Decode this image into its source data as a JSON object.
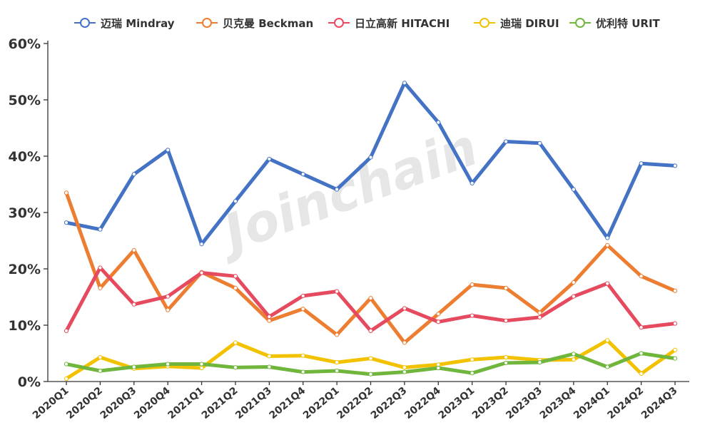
{
  "chart_data": {
    "type": "line",
    "watermark": "Joinchain",
    "ylim": [
      0,
      60
    ],
    "yticks": [
      0,
      10,
      20,
      30,
      40,
      50,
      60
    ],
    "ytick_labels": [
      "0%",
      "10%",
      "20%",
      "30%",
      "40%",
      "50%",
      "60%"
    ],
    "categories": [
      "2020Q1",
      "2020Q2",
      "2020Q3",
      "2020Q4",
      "2021Q1",
      "2021Q2",
      "2021Q3",
      "2021Q4",
      "2022Q1",
      "2022Q2",
      "2022Q3",
      "2022Q4",
      "2023Q1",
      "2023Q2",
      "2023Q3",
      "2023Q4",
      "2024Q1",
      "2024Q2",
      "2024Q3"
    ],
    "series": [
      {
        "name": "迈瑞 Mindray",
        "color": "#4472C4",
        "values": [
          28.2,
          27.0,
          36.8,
          41.1,
          24.4,
          32.0,
          39.5,
          36.8,
          34.1,
          39.8,
          53.0,
          46.0,
          35.2,
          42.6,
          42.3,
          34.1,
          25.5,
          38.7,
          38.3
        ]
      },
      {
        "name": "贝克曼 Beckman",
        "color": "#ED7D31",
        "values": [
          33.5,
          16.6,
          23.3,
          12.7,
          19.4,
          16.6,
          10.8,
          12.9,
          8.3,
          14.8,
          6.9,
          12.0,
          17.2,
          16.6,
          12.2,
          17.6,
          24.2,
          18.7,
          16.1
        ]
      },
      {
        "name": "日立高新 HITACHI",
        "color": "#E64A5E",
        "values": [
          9.0,
          20.2,
          13.7,
          15.1,
          19.3,
          18.7,
          11.5,
          15.2,
          16.0,
          9.0,
          13.0,
          10.6,
          11.7,
          10.8,
          11.4,
          15.1,
          17.4,
          9.6,
          10.3
        ]
      },
      {
        "name": "迪瑞 DIRUI",
        "color": "#F2C200",
        "values": [
          0.5,
          4.3,
          2.3,
          2.7,
          2.4,
          6.9,
          4.5,
          4.6,
          3.4,
          4.1,
          2.5,
          3.0,
          3.9,
          4.3,
          3.8,
          3.9,
          7.3,
          1.4,
          5.6
        ]
      },
      {
        "name": "优利特 URIT",
        "color": "#70B63C",
        "values": [
          3.1,
          1.9,
          2.6,
          3.1,
          3.1,
          2.5,
          2.6,
          1.7,
          1.9,
          1.3,
          1.7,
          2.4,
          1.5,
          3.3,
          3.4,
          4.9,
          2.6,
          5.0,
          4.1
        ]
      }
    ]
  }
}
